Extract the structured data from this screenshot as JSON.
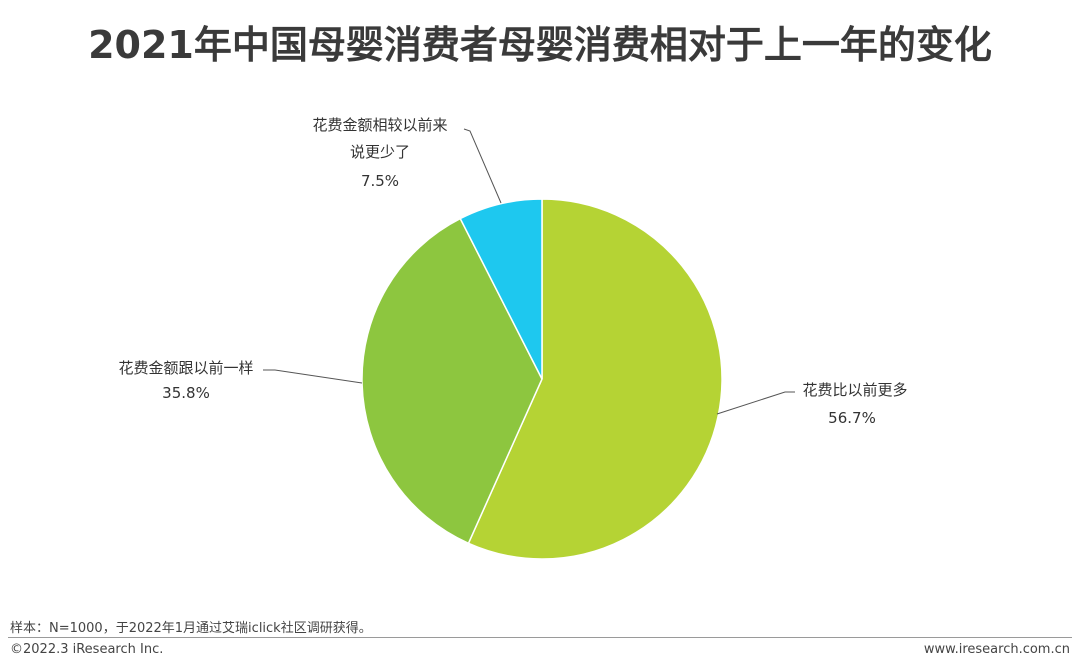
{
  "title": "2021年中国母婴消费者母婴消费相对于上一年的变化",
  "chart_data": {
    "type": "pie",
    "slices": [
      {
        "label": "花费比以前更多",
        "value": 56.7,
        "value_label": "56.7%",
        "color": "#b5d334"
      },
      {
        "label": "花费金额跟以前一样",
        "value": 35.8,
        "value_label": "35.8%",
        "color": "#8dc63f"
      },
      {
        "label_lines": [
          "花费金额相较以前来",
          "说更少了"
        ],
        "value": 7.5,
        "value_label": "7.5%",
        "color": "#1ec8ef"
      }
    ]
  },
  "footer": {
    "note": "样本：N=1000，于2022年1月通过艾瑞iclick社区调研获得。",
    "copyright": "©2022.3 iResearch Inc.",
    "website": "www.iresearch.com.cn"
  }
}
